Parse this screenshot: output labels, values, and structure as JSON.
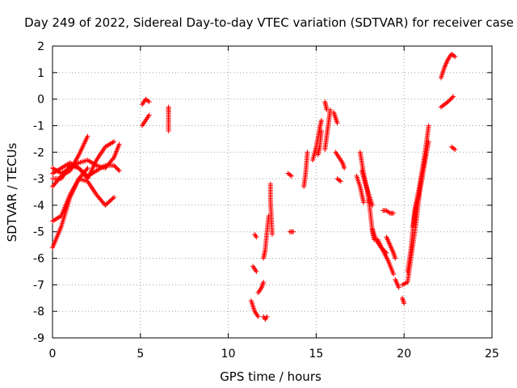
{
  "chart_data": {
    "type": "scatter",
    "title": "Day 249 of 2022, Sidereal Day-to-day VTEC variation (SDTVAR) for receiver case",
    "xlabel": "GPS time / hours",
    "ylabel": "SDTVAR / TECUs",
    "xlim": [
      0,
      25
    ],
    "ylim": [
      -9,
      2
    ],
    "xticks": [
      "0",
      "5",
      "10",
      "15",
      "20",
      "25"
    ],
    "yticks": [
      "2",
      "1",
      "0",
      "-1",
      "-2",
      "-3",
      "-4",
      "-5",
      "-6",
      "-7",
      "-8",
      "-9"
    ],
    "grid": true,
    "marker": "plus",
    "color": "#ff0000",
    "segments": [
      {
        "x": [
          0.0,
          0.5,
          1.0,
          1.5,
          2.0
        ],
        "y": [
          -3.3,
          -2.9,
          -2.7,
          -2.1,
          -1.4
        ]
      },
      {
        "x": [
          0.0,
          0.5,
          1.0,
          1.5,
          2.0,
          2.5,
          3.0,
          3.5
        ],
        "y": [
          -3.0,
          -3.0,
          -2.5,
          -2.6,
          -3.0,
          -2.3,
          -1.8,
          -1.6
        ]
      },
      {
        "x": [
          0.0,
          0.5,
          1.0,
          1.5,
          2.0,
          2.5,
          3.0,
          3.5,
          3.8
        ],
        "y": [
          -2.8,
          -2.6,
          -2.4,
          -2.6,
          -2.9,
          -2.7,
          -2.5,
          -2.5,
          -2.7
        ]
      },
      {
        "x": [
          0.0,
          0.5,
          1.0,
          1.5,
          2.0,
          2.5,
          3.0,
          3.5,
          3.8
        ],
        "y": [
          -2.6,
          -2.8,
          -2.6,
          -2.4,
          -2.3,
          -2.5,
          -2.6,
          -2.2,
          -1.7
        ]
      },
      {
        "x": [
          0.0,
          0.5,
          1.0,
          1.5,
          2.0,
          2.5,
          3.0,
          3.5
        ],
        "y": [
          -4.6,
          -4.4,
          -3.6,
          -3.0,
          -3.1,
          -3.6,
          -4.0,
          -3.7
        ]
      },
      {
        "x": [
          0.0,
          0.5,
          1.0,
          1.5,
          2.0
        ],
        "y": [
          -5.6,
          -4.8,
          -3.7,
          -3.0,
          -2.6
        ]
      },
      {
        "x": [
          5.1,
          5.3,
          5.5
        ],
        "y": [
          -0.2,
          0.0,
          -0.1
        ]
      },
      {
        "x": [
          5.1,
          5.3,
          5.5
        ],
        "y": [
          -1.0,
          -0.8,
          -0.6
        ]
      },
      {
        "x": [
          6.6,
          6.6,
          6.6,
          6.6
        ],
        "y": [
          -0.3,
          -0.5,
          -0.9,
          -1.2
        ]
      },
      {
        "x": [
          11.3,
          11.5,
          11.7
        ],
        "y": [
          -7.6,
          -8.0,
          -8.2
        ]
      },
      {
        "x": [
          11.4,
          11.6
        ],
        "y": [
          -6.3,
          -6.5
        ]
      },
      {
        "x": [
          11.5,
          11.6
        ],
        "y": [
          -5.1,
          -5.2
        ]
      },
      {
        "x": [
          11.7,
          11.9,
          12.0
        ],
        "y": [
          -7.3,
          -7.1,
          -6.9
        ]
      },
      {
        "x": [
          12.0,
          12.1,
          12.2
        ],
        "y": [
          -8.2,
          -8.3,
          -8.2
        ]
      },
      {
        "x": [
          12.0,
          12.1,
          12.2,
          12.3
        ],
        "y": [
          -6.0,
          -5.7,
          -5.0,
          -4.4
        ]
      },
      {
        "x": [
          12.4,
          12.4,
          12.5
        ],
        "y": [
          -3.2,
          -3.8,
          -5.1
        ]
      },
      {
        "x": [
          13.4,
          13.6
        ],
        "y": [
          -2.8,
          -2.9
        ]
      },
      {
        "x": [
          13.5,
          13.7
        ],
        "y": [
          -5.0,
          -5.0
        ]
      },
      {
        "x": [
          14.3,
          14.4,
          14.5
        ],
        "y": [
          -3.3,
          -2.8,
          -2.0
        ]
      },
      {
        "x": [
          14.8,
          15.0,
          15.2,
          15.3
        ],
        "y": [
          -2.3,
          -1.8,
          -1.1,
          -0.8
        ]
      },
      {
        "x": [
          15.1,
          15.2,
          15.3
        ],
        "y": [
          -2.1,
          -1.8,
          -1.2
        ]
      },
      {
        "x": [
          15.5,
          15.6,
          15.7,
          15.8
        ],
        "y": [
          -1.9,
          -1.4,
          -0.9,
          -0.4
        ]
      },
      {
        "x": [
          15.5,
          15.6
        ],
        "y": [
          -0.1,
          -0.4
        ]
      },
      {
        "x": [
          16.0,
          16.1,
          16.2
        ],
        "y": [
          -0.5,
          -0.7,
          -0.9
        ]
      },
      {
        "x": [
          16.1,
          16.3,
          16.5,
          16.6
        ],
        "y": [
          -2.0,
          -2.2,
          -2.4,
          -2.6
        ]
      },
      {
        "x": [
          16.2,
          16.4
        ],
        "y": [
          -3.0,
          -3.1
        ]
      },
      {
        "x": [
          17.3,
          17.5,
          17.7
        ],
        "y": [
          -2.9,
          -3.3,
          -3.9
        ]
      },
      {
        "x": [
          17.5,
          17.7,
          17.9,
          18.0
        ],
        "y": [
          -2.0,
          -2.8,
          -3.4,
          -3.9
        ]
      },
      {
        "x": [
          17.6,
          17.8,
          18.0,
          18.2
        ],
        "y": [
          -2.7,
          -3.2,
          -3.6,
          -4.0
        ]
      },
      {
        "x": [
          18.0,
          18.1,
          18.2,
          18.3
        ],
        "y": [
          -3.8,
          -4.4,
          -5.0,
          -5.3
        ]
      },
      {
        "x": [
          18.2,
          18.4,
          18.7,
          19.0
        ],
        "y": [
          -4.9,
          -5.3,
          -5.6,
          -5.8
        ]
      },
      {
        "x": [
          18.5,
          18.8,
          19.1,
          19.4
        ],
        "y": [
          -5.3,
          -5.7,
          -6.1,
          -6.6
        ]
      },
      {
        "x": [
          18.8,
          19.0,
          19.2,
          19.4
        ],
        "y": [
          -4.2,
          -4.2,
          -4.3,
          -4.3
        ]
      },
      {
        "x": [
          19.0,
          19.2,
          19.4,
          19.5
        ],
        "y": [
          -5.2,
          -5.5,
          -5.8,
          -6.0
        ]
      },
      {
        "x": [
          19.5,
          19.7
        ],
        "y": [
          -6.8,
          -7.1
        ]
      },
      {
        "x": [
          19.9,
          20.0
        ],
        "y": [
          -7.5,
          -7.7
        ]
      },
      {
        "x": [
          19.9,
          20.2,
          20.5,
          20.7,
          20.9,
          21.2
        ],
        "y": [
          -7.0,
          -6.9,
          -5.5,
          -4.6,
          -3.4,
          -2.1
        ]
      },
      {
        "x": [
          20.2,
          20.4,
          20.6,
          20.9,
          21.1,
          21.3,
          21.4
        ],
        "y": [
          -6.5,
          -5.6,
          -4.2,
          -3.2,
          -2.4,
          -1.5,
          -1.0
        ]
      },
      {
        "x": [
          20.5,
          20.7,
          21.0,
          21.2,
          21.4
        ],
        "y": [
          -4.8,
          -4.0,
          -3.1,
          -2.3,
          -1.6
        ]
      },
      {
        "x": [
          22.1,
          22.3,
          22.5,
          22.8
        ],
        "y": [
          -0.3,
          -0.2,
          -0.1,
          0.1
        ]
      },
      {
        "x": [
          22.1,
          22.3,
          22.5,
          22.7,
          22.9
        ],
        "y": [
          0.8,
          1.2,
          1.5,
          1.7,
          1.6
        ]
      },
      {
        "x": [
          22.7,
          22.9
        ],
        "y": [
          -1.8,
          -1.9
        ]
      }
    ]
  }
}
